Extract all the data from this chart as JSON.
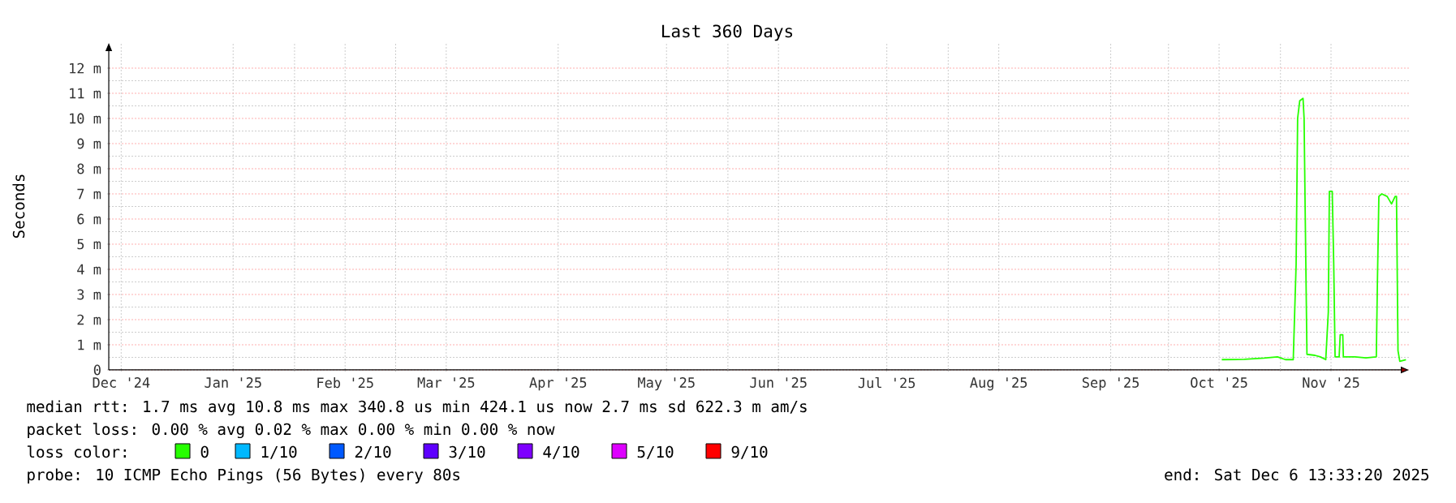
{
  "chart_data": {
    "type": "line",
    "title": "Last 360 Days",
    "ylabel": "Seconds",
    "legend_title": "loss color:",
    "legend": "bottom",
    "grid": true,
    "xlim": [
      "2024-12-11T13:33",
      "2025-12-06T13:33"
    ],
    "xticks": [
      {
        "value": "2024-12-15",
        "label": "Dec '24"
      },
      {
        "value": "2025-01-15",
        "label": "Jan '25"
      },
      {
        "value": "2025-02-15",
        "label": "Feb '25"
      },
      {
        "value": "2025-03-15",
        "label": "Mar '25"
      },
      {
        "value": "2025-04-15",
        "label": "Apr '25"
      },
      {
        "value": "2025-05-15",
        "label": "May '25"
      },
      {
        "value": "2025-06-15",
        "label": "Jun '25"
      },
      {
        "value": "2025-07-15",
        "label": "Jul '25"
      },
      {
        "value": "2025-08-15",
        "label": "Aug '25"
      },
      {
        "value": "2025-09-15",
        "label": "Sep '25"
      },
      {
        "value": "2025-10-15",
        "label": "Oct '25"
      },
      {
        "value": "2025-11-15",
        "label": "Nov '25"
      },
      {
        "value": "2025-02-01",
        "label": null
      },
      {
        "value": "2025-03-01",
        "label": null
      },
      {
        "value": "2025-06-01",
        "label": null
      },
      {
        "value": "2025-08-01",
        "label": null
      },
      {
        "value": "2025-10-01",
        "label": null
      },
      {
        "value": "2025-11-01",
        "label": null
      }
    ],
    "ylim": [
      0,
      13
    ],
    "yticks": [
      {
        "value": 0,
        "label": "0"
      },
      {
        "value": 1,
        "label": "1 m"
      },
      {
        "value": 2,
        "label": "2 m"
      },
      {
        "value": 3,
        "label": "3 m"
      },
      {
        "value": 4,
        "label": "4 m"
      },
      {
        "value": 5,
        "label": "5 m"
      },
      {
        "value": 6,
        "label": "6 m"
      },
      {
        "value": 7,
        "label": "7 m"
      },
      {
        "value": 8,
        "label": "8 m"
      },
      {
        "value": 9,
        "label": "9 m"
      },
      {
        "value": 10,
        "label": "10 m"
      },
      {
        "value": 11,
        "label": "11 m"
      },
      {
        "value": 12,
        "label": "12 m"
      }
    ],
    "series": [
      {
        "name": "0",
        "color": "#26ff00",
        "x": [
          "2025-10-15T18:00",
          "2025-10-22T00:00",
          "2025-10-27T11:00",
          "2025-10-31T04:00",
          "2025-11-02T09:00",
          "2025-11-04T13:00",
          "2025-11-05T08:00",
          "2025-11-05T18:00",
          "2025-11-06T08:00",
          "2025-11-07T06:00",
          "2025-11-07T13:00",
          "2025-11-07T20:00",
          "2025-11-08T08:00",
          "2025-11-10T13:00",
          "2025-11-12T01:00",
          "2025-11-13T13:00",
          "2025-11-14T06:00",
          "2025-11-14T13:00",
          "2025-11-15T08:00",
          "2025-11-15T18:00",
          "2025-11-16T03:00",
          "2025-11-17T06:00",
          "2025-11-17T13:00",
          "2025-11-18T06:00",
          "2025-11-18T10:00",
          "2025-11-21T16:00",
          "2025-11-24T16:00",
          "2025-11-27T13:00",
          "2025-11-27T20:00",
          "2025-11-28T06:00",
          "2025-11-29T01:00",
          "2025-11-30T13:00",
          "2025-12-01T18:00",
          "2025-12-02T18:00",
          "2025-12-03T03:00",
          "2025-12-03T13:00",
          "2025-12-04T01:00",
          "2025-12-05T18:00"
        ],
        "values": [
          0.41,
          0.42,
          0.47,
          0.52,
          0.41,
          0.41,
          4.2,
          10.0,
          10.7,
          10.8,
          10.0,
          6.4,
          0.62,
          0.58,
          0.52,
          0.41,
          2.3,
          7.1,
          7.1,
          4.2,
          0.52,
          0.52,
          1.4,
          1.4,
          0.52,
          0.52,
          0.48,
          0.52,
          3.4,
          6.9,
          7.0,
          6.9,
          6.6,
          6.9,
          6.9,
          0.77,
          0.34,
          0.41
        ]
      },
      {
        "name": "1/10",
        "color": "#00b8ff"
      },
      {
        "name": "2/10",
        "color": "#0059ff"
      },
      {
        "name": "3/10",
        "color": "#5e00ff"
      },
      {
        "name": "4/10",
        "color": "#7e00ff"
      },
      {
        "name": "5/10",
        "color": "#dd00ff"
      },
      {
        "name": "9/10",
        "color": "#ff0000"
      }
    ],
    "annotations": [
      "median rtt:  1.7 ms avg  10.8 ms max  340.8 us min  424.1 us now  2.7 ms sd  622.3 m am/s",
      "packet loss: 0.00 % avg  0.02 % max  0.00 % min  0.00 % now",
      "probe:       10 ICMP Echo Pings (56 Bytes) every 80s",
      "end: Sat Dec  6 13:33:20 2025"
    ]
  }
}
